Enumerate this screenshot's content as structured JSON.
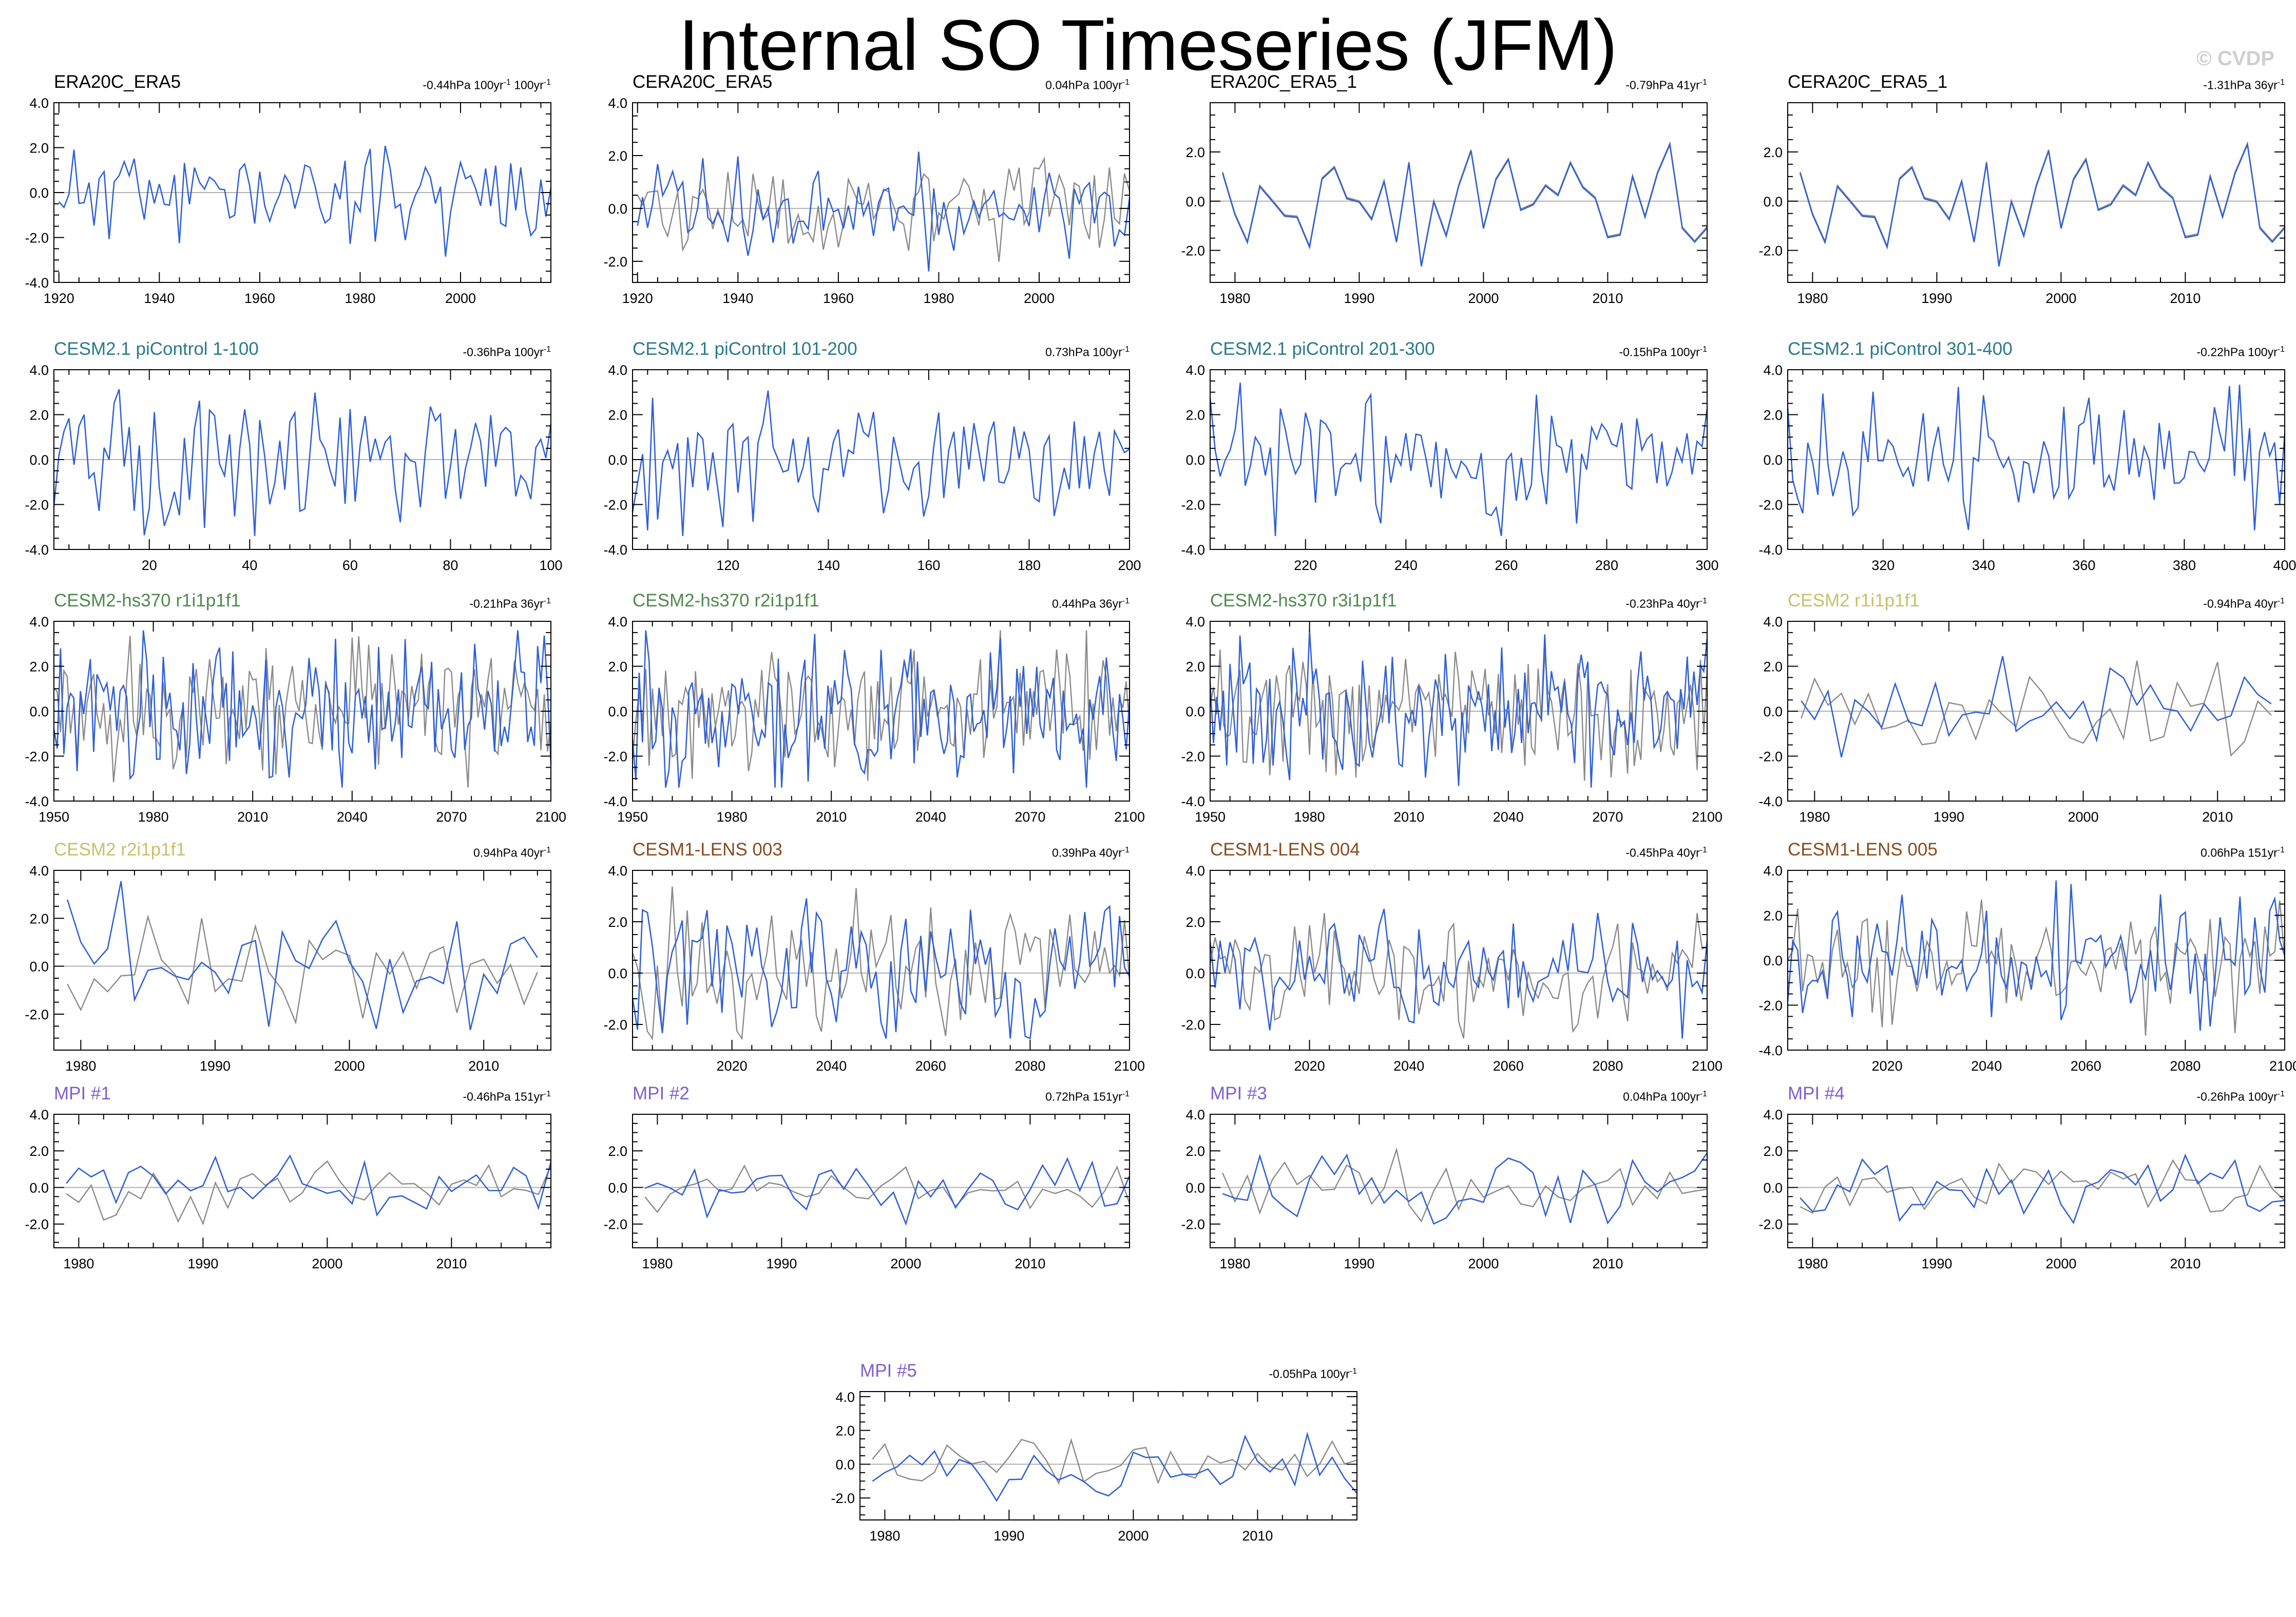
{
  "title": "Internal SO Timeseries (JFM)",
  "credit": "© CVDP",
  "colors": {
    "model_line": "#3060d8",
    "obs_line": "#8a8a8a",
    "zero_line": "#b0b0b0",
    "title_obs": "#000000",
    "title_cesm21": "#2a7a8c",
    "title_cesm2hs": "#4f8a4f",
    "title_cesm2": "#c8c06a",
    "title_lens": "#8a4a1c",
    "title_mpi": "#7f5fd0"
  },
  "chart_data": [
    {
      "type": "line",
      "title": "ERA20C_ERA5",
      "trend": "-0.44hPa 100yr",
      "trend_sup": "-1",
      "trend2": " 100yr",
      "trend2_sup": "-1",
      "title_color": "title_obs",
      "xlim": [
        1919,
        2018
      ],
      "xticks": [
        1920,
        1940,
        1960,
        1980,
        2000
      ],
      "ylim": [
        -4,
        4
      ],
      "yticks": [
        -4,
        -2,
        0,
        2,
        4
      ],
      "x": {
        "start": 1920,
        "end": 2018
      },
      "gray": false,
      "seed": 11,
      "amp": 1.1
    },
    {
      "type": "line",
      "title": "CERA20C_ERA5",
      "trend": "0.04hPa 100yr",
      "trend_sup": "-1",
      "title_color": "title_obs",
      "xlim": [
        1919,
        2018
      ],
      "xticks": [
        1920,
        1940,
        1960,
        1980,
        2000
      ],
      "ylim": [
        -2.8,
        4
      ],
      "yticks": [
        -2,
        0,
        2,
        4
      ],
      "x": {
        "start": 1920,
        "end": 2018
      },
      "gray": true,
      "seed": 12,
      "amp": 1.0
    },
    {
      "type": "line",
      "title": "ERA20C_ERA5_1",
      "trend": "-0.79hPa 41yr",
      "trend_sup": "-1",
      "title_color": "title_obs",
      "xlim": [
        1978,
        2018
      ],
      "xticks": [
        1980,
        1990,
        2000,
        2010
      ],
      "ylim": [
        -3.3,
        4
      ],
      "yticks": [
        -2,
        0,
        2
      ],
      "x": {
        "start": 1979,
        "end": 2018
      },
      "gray": true,
      "seed": 13,
      "amp": 1.2,
      "same": true
    },
    {
      "type": "line",
      "title": "CERA20C_ERA5_1",
      "trend": "-1.31hPa 36yr",
      "trend_sup": "-1",
      "title_color": "title_obs",
      "xlim": [
        1978,
        2018
      ],
      "xticks": [
        1980,
        1990,
        2000,
        2010
      ],
      "ylim": [
        -3.3,
        4
      ],
      "yticks": [
        -2,
        0,
        2
      ],
      "x": {
        "start": 1979,
        "end": 2018
      },
      "gray": true,
      "seed": 13,
      "amp": 1.2,
      "same": true
    },
    {
      "type": "line",
      "title": "CESM2.1 piControl 1-100",
      "trend": "-0.36hPa 100yr",
      "trend_sup": "-1",
      "title_color": "title_cesm21",
      "xlim": [
        1,
        100
      ],
      "xticks": [
        20,
        40,
        60,
        80,
        100
      ],
      "ylim": [
        -4,
        4
      ],
      "yticks": [
        -4,
        -2,
        0,
        2,
        4
      ],
      "x": {
        "start": 1,
        "end": 100
      },
      "gray": false,
      "seed": 21,
      "amp": 1.5
    },
    {
      "type": "line",
      "title": "CESM2.1 piControl 101-200",
      "trend": "0.73hPa 100yr",
      "trend_sup": "-1",
      "title_color": "title_cesm21",
      "xlim": [
        101,
        200
      ],
      "xticks": [
        120,
        140,
        160,
        180,
        200
      ],
      "ylim": [
        -4,
        4
      ],
      "yticks": [
        -4,
        -2,
        0,
        2,
        4
      ],
      "x": {
        "start": 101,
        "end": 200
      },
      "gray": false,
      "seed": 22,
      "amp": 1.4
    },
    {
      "type": "line",
      "title": "CESM2.1 piControl 201-300",
      "trend": "-0.15hPa 100yr",
      "trend_sup": "-1",
      "title_color": "title_cesm21",
      "xlim": [
        201,
        300
      ],
      "xticks": [
        220,
        240,
        260,
        280,
        300
      ],
      "ylim": [
        -4,
        4
      ],
      "yticks": [
        -4,
        -2,
        0,
        2,
        4
      ],
      "x": {
        "start": 201,
        "end": 300
      },
      "gray": false,
      "seed": 23,
      "amp": 1.5
    },
    {
      "type": "line",
      "title": "CESM2.1 piControl 301-400",
      "trend": "-0.22hPa 100yr",
      "trend_sup": "-1",
      "title_color": "title_cesm21",
      "xlim": [
        301,
        400
      ],
      "xticks": [
        320,
        340,
        360,
        380,
        400
      ],
      "ylim": [
        -4,
        4
      ],
      "yticks": [
        -4,
        -2,
        0,
        2,
        4
      ],
      "x": {
        "start": 301,
        "end": 400
      },
      "gray": false,
      "seed": 24,
      "amp": 1.5
    },
    {
      "type": "line",
      "title": "CESM2-hs370 r1i1p1f1",
      "trend": "-0.21hPa 36yr",
      "trend_sup": "-1",
      "title_color": "title_cesm2hs",
      "xlim": [
        1950,
        2100
      ],
      "xticks": [
        1950,
        1980,
        2010,
        2040,
        2070,
        2100
      ],
      "ylim": [
        -4,
        4
      ],
      "yticks": [
        -4,
        -2,
        0,
        2,
        4
      ],
      "x": {
        "start": 1950,
        "end": 2100
      },
      "gray": true,
      "seed": 31,
      "amp": 1.6
    },
    {
      "type": "line",
      "title": "CESM2-hs370 r2i1p1f1",
      "trend": "0.44hPa 36yr",
      "trend_sup": "-1",
      "title_color": "title_cesm2hs",
      "xlim": [
        1950,
        2100
      ],
      "xticks": [
        1950,
        1980,
        2010,
        2040,
        2070,
        2100
      ],
      "ylim": [
        -4,
        4
      ],
      "yticks": [
        -4,
        -2,
        0,
        2,
        4
      ],
      "x": {
        "start": 1950,
        "end": 2100
      },
      "gray": true,
      "seed": 32,
      "amp": 1.6
    },
    {
      "type": "line",
      "title": "CESM2-hs370 r3i1p1f1",
      "trend": "-0.23hPa 40yr",
      "trend_sup": "-1",
      "title_color": "title_cesm2hs",
      "xlim": [
        1950,
        2100
      ],
      "xticks": [
        1950,
        1980,
        2010,
        2040,
        2070,
        2100
      ],
      "ylim": [
        -4,
        4
      ],
      "yticks": [
        -4,
        -2,
        0,
        2,
        4
      ],
      "x": {
        "start": 1950,
        "end": 2100
      },
      "gray": true,
      "seed": 33,
      "amp": 1.6
    },
    {
      "type": "line",
      "title": "CESM2 r1i1p1f1",
      "trend": "-0.94hPa 40yr",
      "trend_sup": "-1",
      "title_color": "title_cesm2",
      "xlim": [
        1978,
        2015
      ],
      "xticks": [
        1980,
        1990,
        2000,
        2010
      ],
      "ylim": [
        -4,
        4
      ],
      "yticks": [
        -4,
        -2,
        0,
        2,
        4
      ],
      "x": {
        "start": 1979,
        "end": 2014
      },
      "gray": true,
      "seed": 41,
      "amp": 1.2
    },
    {
      "type": "line",
      "title": "CESM2 r2i1p1f1",
      "trend": "0.94hPa 40yr",
      "trend_sup": "-1",
      "title_color": "title_cesm2",
      "xlim": [
        1978,
        2015
      ],
      "xticks": [
        1980,
        1990,
        2000,
        2010
      ],
      "ylim": [
        -3.5,
        4
      ],
      "yticks": [
        -2,
        0,
        2,
        4
      ],
      "x": {
        "start": 1979,
        "end": 2014
      },
      "gray": true,
      "seed": 42,
      "amp": 1.4
    },
    {
      "type": "line",
      "title": "CESM1-LENS 003",
      "trend": "0.39hPa 40yr",
      "trend_sup": "-1",
      "title_color": "title_lens",
      "xlim": [
        2000,
        2100
      ],
      "xticks": [
        2020,
        2040,
        2060,
        2080,
        2100
      ],
      "ylim": [
        -3,
        4
      ],
      "yticks": [
        -2,
        0,
        2,
        4
      ],
      "x": {
        "start": 2000,
        "end": 2100
      },
      "gray": true,
      "seed": 51,
      "amp": 1.5
    },
    {
      "type": "line",
      "title": "CESM1-LENS 004",
      "trend": "-0.45hPa 40yr",
      "trend_sup": "-1",
      "title_color": "title_lens",
      "xlim": [
        2000,
        2100
      ],
      "xticks": [
        2020,
        2040,
        2060,
        2080,
        2100
      ],
      "ylim": [
        -3,
        4
      ],
      "yticks": [
        -2,
        0,
        2,
        4
      ],
      "x": {
        "start": 2000,
        "end": 2100
      },
      "gray": true,
      "seed": 52,
      "amp": 1.3
    },
    {
      "type": "line",
      "title": "CESM1-LENS 005",
      "trend": "0.06hPa 151yr",
      "trend_sup": "-1",
      "title_color": "title_lens",
      "xlim": [
        2000,
        2100
      ],
      "xticks": [
        2020,
        2040,
        2060,
        2080,
        2100
      ],
      "ylim": [
        -4,
        4
      ],
      "yticks": [
        -4,
        -2,
        0,
        2,
        4
      ],
      "x": {
        "start": 2000,
        "end": 2100
      },
      "gray": true,
      "seed": 53,
      "amp": 1.5
    },
    {
      "type": "line",
      "title": "MPI #1",
      "trend": "-0.46hPa 151yr",
      "trend_sup": "-1",
      "title_color": "title_mpi",
      "xlim": [
        1978,
        2018
      ],
      "xticks": [
        1980,
        1990,
        2000,
        2010
      ],
      "ylim": [
        -3.3,
        4
      ],
      "yticks": [
        -2,
        0,
        2,
        4
      ],
      "x": {
        "start": 1979,
        "end": 2018
      },
      "gray": true,
      "seed": 61,
      "amp": 0.9
    },
    {
      "type": "line",
      "title": "MPI #2",
      "trend": "0.72hPa 151yr",
      "trend_sup": "-1",
      "title_color": "title_mpi",
      "xlim": [
        1978,
        2018
      ],
      "xticks": [
        1980,
        1990,
        2000,
        2010
      ],
      "ylim": [
        -3.3,
        4
      ],
      "yticks": [
        -2,
        0,
        2
      ],
      "x": {
        "start": 1979,
        "end": 2018
      },
      "gray": true,
      "seed": 62,
      "amp": 0.8
    },
    {
      "type": "line",
      "title": "MPI #3",
      "trend": "0.04hPa 100yr",
      "trend_sup": "-1",
      "title_color": "title_mpi",
      "xlim": [
        1978,
        2018
      ],
      "xticks": [
        1980,
        1990,
        2000,
        2010
      ],
      "ylim": [
        -3.3,
        4
      ],
      "yticks": [
        -2,
        0,
        2,
        4
      ],
      "x": {
        "start": 1979,
        "end": 2018
      },
      "gray": true,
      "seed": 63,
      "amp": 1.0
    },
    {
      "type": "line",
      "title": "MPI #4",
      "trend": "-0.26hPa 100yr",
      "trend_sup": "-1",
      "title_color": "title_mpi",
      "xlim": [
        1978,
        2018
      ],
      "xticks": [
        1980,
        1990,
        2000,
        2010
      ],
      "ylim": [
        -3.3,
        4
      ],
      "yticks": [
        -2,
        0,
        2,
        4
      ],
      "x": {
        "start": 1979,
        "end": 2018
      },
      "gray": true,
      "seed": 64,
      "amp": 0.9
    },
    {
      "type": "line",
      "title": "MPI #5",
      "trend": "-0.05hPa 100yr",
      "trend_sup": "-1",
      "title_color": "title_mpi",
      "xlim": [
        1978,
        2018
      ],
      "xticks": [
        1980,
        1990,
        2000,
        2010
      ],
      "ylim": [
        -3.3,
        4.3
      ],
      "yticks": [
        -2,
        0,
        2,
        4
      ],
      "x": {
        "start": 1979,
        "end": 2018
      },
      "gray": true,
      "seed": 65,
      "amp": 1.1
    }
  ]
}
